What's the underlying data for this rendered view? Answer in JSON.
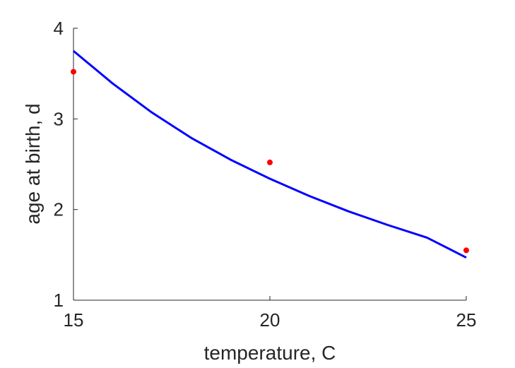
{
  "chart_data": {
    "type": "line",
    "title": "",
    "xlabel": "temperature, C",
    "ylabel": "age at birth, d",
    "xlim": [
      15,
      25
    ],
    "ylim": [
      1,
      4
    ],
    "xticks": [
      15,
      20,
      25
    ],
    "yticks": [
      1,
      2,
      3,
      4
    ],
    "grid": false,
    "legend": "none",
    "series": [
      {
        "kind": "line",
        "color": "#0000ff",
        "x": [
          15,
          16,
          17,
          18,
          19,
          20,
          21,
          22,
          23,
          24,
          25
        ],
        "y": [
          3.75,
          3.39,
          3.07,
          2.79,
          2.55,
          2.34,
          2.15,
          1.98,
          1.83,
          1.69,
          1.47
        ]
      },
      {
        "kind": "scatter",
        "color": "#ff0000",
        "x": [
          15,
          20,
          25
        ],
        "y": [
          3.52,
          2.52,
          1.55
        ]
      }
    ]
  }
}
